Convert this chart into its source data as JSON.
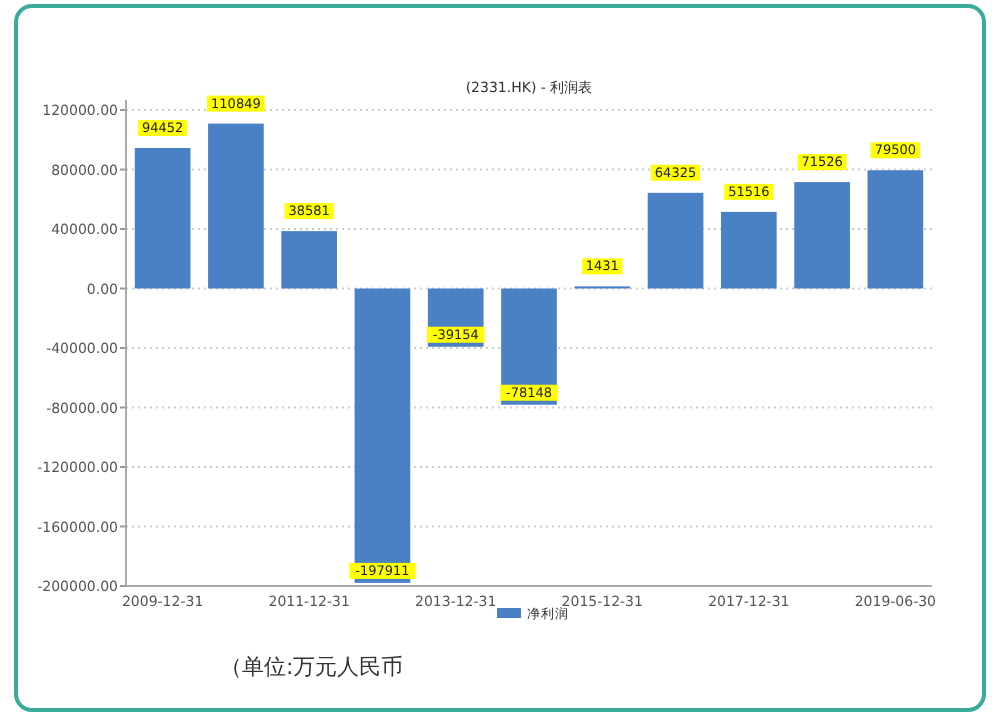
{
  "chart_data": {
    "type": "bar",
    "title": "(2331.HK) - 利润表",
    "categories": [
      "2009-12-31",
      null,
      "2011-12-31",
      null,
      "2013-12-31",
      null,
      "2015-12-31",
      null,
      "2017-12-31",
      null,
      "2019-06-30"
    ],
    "series": [
      {
        "name": "净利润",
        "color": "#4a80c4",
        "values": [
          94452,
          110849,
          38581,
          -197911,
          -39154,
          -78148,
          1431,
          64325,
          51516,
          71526,
          79500
        ]
      }
    ],
    "ylim": [
      -200000,
      120000
    ],
    "yticks": [
      {
        "value": -200000,
        "label": "-200000.00"
      },
      {
        "value": -160000,
        "label": "-160000.00"
      },
      {
        "value": -120000,
        "label": "-120000.00"
      },
      {
        "value": -80000,
        "label": "-80000.00"
      },
      {
        "value": -40000,
        "label": "-40000.00"
      },
      {
        "value": 0,
        "label": "0.00"
      },
      {
        "value": 40000,
        "label": "40000.00"
      },
      {
        "value": 80000,
        "label": "80000.00"
      },
      {
        "value": 120000,
        "label": "120000.00"
      }
    ],
    "grid": "y",
    "legend": "bottom",
    "data_labels": true,
    "annotations": [
      "（单位:万元人民币"
    ]
  }
}
